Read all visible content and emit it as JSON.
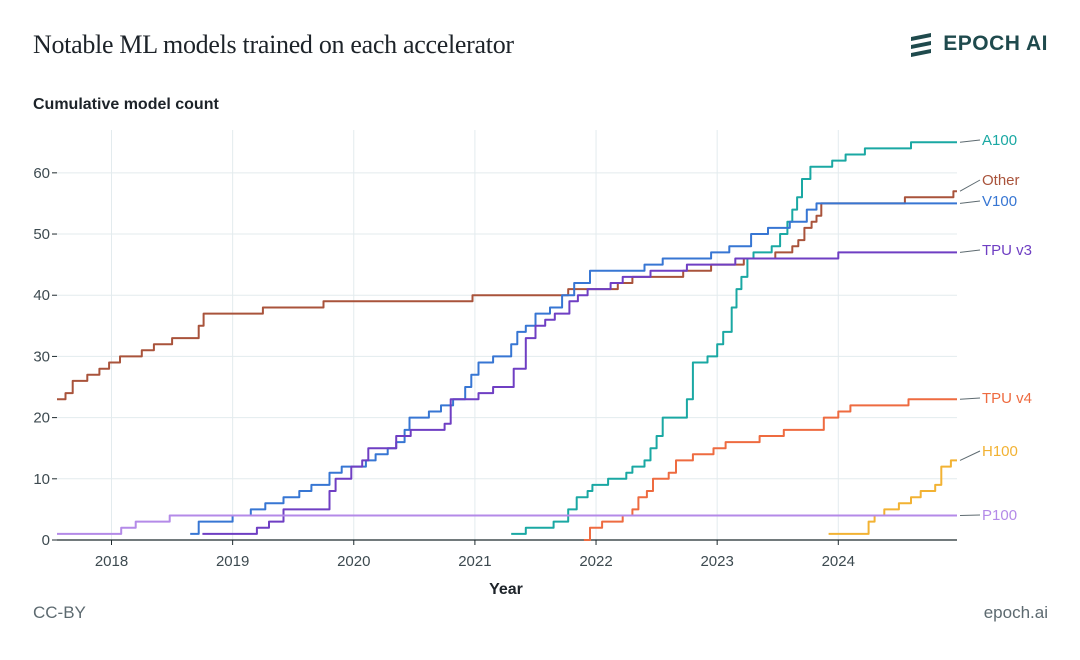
{
  "header": {
    "title": "Notable ML models trained on each accelerator",
    "brand": "EPOCH AI",
    "brand_icon": "epoch-logo-icon"
  },
  "footer": {
    "license": "CC-BY",
    "site": "epoch.ai"
  },
  "colors": {
    "grid": "#e3ebee",
    "axis": "#1e2a2e",
    "A100": "#1aa8a3",
    "Other": "#a9533b",
    "V100": "#3776d3",
    "TPU v3": "#6f3fc3",
    "TPU v4": "#ee6b40",
    "H100": "#f2b233",
    "P100": "#b48ae8"
  },
  "chart_data": {
    "type": "line",
    "step": true,
    "ylabel": "Cumulative model count",
    "xlabel": "Year",
    "xlim": [
      2017.55,
      2024.98
    ],
    "ylim": [
      0,
      67
    ],
    "xticks": [
      2018,
      2019,
      2020,
      2021,
      2022,
      2023,
      2024
    ],
    "xtick_labels": [
      "2018",
      "2019",
      "2020",
      "2021",
      "2022",
      "2023",
      "2024"
    ],
    "yticks": [
      0,
      10,
      20,
      30,
      40,
      50,
      60
    ],
    "ytick_labels": [
      "0",
      "10",
      "20",
      "30",
      "40",
      "50",
      "60"
    ],
    "grid": true,
    "legend": "direct-labels-right",
    "series": [
      {
        "name": "A100",
        "end_label": 65,
        "points": [
          [
            2021.3,
            1
          ],
          [
            2021.42,
            2
          ],
          [
            2021.65,
            3
          ],
          [
            2021.77,
            5
          ],
          [
            2021.84,
            7
          ],
          [
            2021.93,
            8
          ],
          [
            2021.97,
            9
          ],
          [
            2022.1,
            10
          ],
          [
            2022.25,
            11
          ],
          [
            2022.3,
            12
          ],
          [
            2022.4,
            13
          ],
          [
            2022.45,
            15
          ],
          [
            2022.5,
            17
          ],
          [
            2022.55,
            20
          ],
          [
            2022.75,
            23
          ],
          [
            2022.8,
            29
          ],
          [
            2022.92,
            30
          ],
          [
            2023.0,
            32
          ],
          [
            2023.05,
            34
          ],
          [
            2023.12,
            38
          ],
          [
            2023.16,
            41
          ],
          [
            2023.2,
            43
          ],
          [
            2023.25,
            46
          ],
          [
            2023.3,
            47
          ],
          [
            2023.45,
            48
          ],
          [
            2023.52,
            50
          ],
          [
            2023.58,
            52
          ],
          [
            2023.62,
            54
          ],
          [
            2023.66,
            56
          ],
          [
            2023.7,
            59
          ],
          [
            2023.77,
            61
          ],
          [
            2023.95,
            62
          ],
          [
            2024.06,
            63
          ],
          [
            2024.22,
            64
          ],
          [
            2024.6,
            65
          ],
          [
            2024.98,
            65
          ]
        ]
      },
      {
        "name": "Other",
        "end_label": 57,
        "points": [
          [
            2017.55,
            23
          ],
          [
            2017.62,
            24
          ],
          [
            2017.68,
            26
          ],
          [
            2017.8,
            27
          ],
          [
            2017.9,
            28
          ],
          [
            2017.98,
            29
          ],
          [
            2018.07,
            30
          ],
          [
            2018.25,
            31
          ],
          [
            2018.35,
            32
          ],
          [
            2018.5,
            33
          ],
          [
            2018.72,
            35
          ],
          [
            2018.76,
            37
          ],
          [
            2019.0,
            37
          ],
          [
            2019.25,
            38
          ],
          [
            2019.75,
            39
          ],
          [
            2020.5,
            39
          ],
          [
            2020.98,
            40
          ],
          [
            2021.55,
            40
          ],
          [
            2021.77,
            41
          ],
          [
            2022.0,
            41
          ],
          [
            2022.18,
            42
          ],
          [
            2022.3,
            43
          ],
          [
            2022.72,
            44
          ],
          [
            2022.95,
            45
          ],
          [
            2023.08,
            45
          ],
          [
            2023.22,
            46
          ],
          [
            2023.38,
            46
          ],
          [
            2023.48,
            47
          ],
          [
            2023.55,
            47
          ],
          [
            2023.62,
            48
          ],
          [
            2023.67,
            49
          ],
          [
            2023.72,
            51
          ],
          [
            2023.78,
            52
          ],
          [
            2023.82,
            53
          ],
          [
            2023.86,
            55
          ],
          [
            2024.2,
            55
          ],
          [
            2024.55,
            56
          ],
          [
            2024.95,
            57
          ],
          [
            2024.98,
            57
          ]
        ]
      },
      {
        "name": "V100",
        "end_label": 55,
        "points": [
          [
            2018.65,
            1
          ],
          [
            2018.72,
            3
          ],
          [
            2018.85,
            3
          ],
          [
            2019.0,
            4
          ],
          [
            2019.15,
            5
          ],
          [
            2019.27,
            6
          ],
          [
            2019.42,
            7
          ],
          [
            2019.55,
            8
          ],
          [
            2019.65,
            9
          ],
          [
            2019.8,
            11
          ],
          [
            2019.9,
            12
          ],
          [
            2020.1,
            13
          ],
          [
            2020.18,
            14
          ],
          [
            2020.28,
            15
          ],
          [
            2020.35,
            16
          ],
          [
            2020.42,
            18
          ],
          [
            2020.46,
            20
          ],
          [
            2020.62,
            21
          ],
          [
            2020.72,
            22
          ],
          [
            2020.82,
            23
          ],
          [
            2020.92,
            25
          ],
          [
            2020.97,
            27
          ],
          [
            2021.03,
            29
          ],
          [
            2021.15,
            30
          ],
          [
            2021.3,
            32
          ],
          [
            2021.35,
            34
          ],
          [
            2021.42,
            35
          ],
          [
            2021.5,
            37
          ],
          [
            2021.62,
            38
          ],
          [
            2021.72,
            40
          ],
          [
            2021.82,
            42
          ],
          [
            2021.95,
            44
          ],
          [
            2022.4,
            45
          ],
          [
            2022.55,
            46
          ],
          [
            2022.95,
            47
          ],
          [
            2023.1,
            48
          ],
          [
            2023.28,
            50
          ],
          [
            2023.42,
            51
          ],
          [
            2023.6,
            52
          ],
          [
            2023.74,
            54
          ],
          [
            2023.82,
            55
          ],
          [
            2024.98,
            55
          ]
        ]
      },
      {
        "name": "TPU v3",
        "end_label": 47,
        "points": [
          [
            2018.75,
            1
          ],
          [
            2019.15,
            1
          ],
          [
            2019.2,
            2
          ],
          [
            2019.3,
            3
          ],
          [
            2019.42,
            5
          ],
          [
            2019.72,
            5
          ],
          [
            2019.8,
            8
          ],
          [
            2019.85,
            10
          ],
          [
            2019.98,
            12
          ],
          [
            2020.07,
            13
          ],
          [
            2020.12,
            15
          ],
          [
            2020.32,
            15
          ],
          [
            2020.35,
            17
          ],
          [
            2020.47,
            18
          ],
          [
            2020.75,
            19
          ],
          [
            2020.8,
            23
          ],
          [
            2020.95,
            23
          ],
          [
            2021.03,
            24
          ],
          [
            2021.15,
            25
          ],
          [
            2021.32,
            28
          ],
          [
            2021.42,
            33
          ],
          [
            2021.5,
            35
          ],
          [
            2021.58,
            36
          ],
          [
            2021.66,
            37
          ],
          [
            2021.78,
            39
          ],
          [
            2021.85,
            40
          ],
          [
            2021.93,
            41
          ],
          [
            2022.12,
            42
          ],
          [
            2022.22,
            43
          ],
          [
            2022.45,
            44
          ],
          [
            2022.75,
            45
          ],
          [
            2023.15,
            46
          ],
          [
            2024.0,
            47
          ],
          [
            2024.98,
            47
          ]
        ]
      },
      {
        "name": "TPU v4",
        "end_label": 23,
        "points": [
          [
            2021.9,
            0
          ],
          [
            2021.95,
            2
          ],
          [
            2022.05,
            3
          ],
          [
            2022.22,
            4
          ],
          [
            2022.3,
            5
          ],
          [
            2022.35,
            7
          ],
          [
            2022.42,
            8
          ],
          [
            2022.47,
            10
          ],
          [
            2022.6,
            11
          ],
          [
            2022.66,
            13
          ],
          [
            2022.8,
            14
          ],
          [
            2022.97,
            15
          ],
          [
            2023.07,
            16
          ],
          [
            2023.35,
            17
          ],
          [
            2023.55,
            18
          ],
          [
            2023.88,
            20
          ],
          [
            2024.0,
            21
          ],
          [
            2024.1,
            22
          ],
          [
            2024.58,
            23
          ],
          [
            2024.98,
            23
          ]
        ]
      },
      {
        "name": "H100",
        "end_label": 13,
        "points": [
          [
            2023.92,
            1
          ],
          [
            2024.18,
            1
          ],
          [
            2024.25,
            3
          ],
          [
            2024.3,
            4
          ],
          [
            2024.38,
            5
          ],
          [
            2024.5,
            6
          ],
          [
            2024.6,
            7
          ],
          [
            2024.68,
            8
          ],
          [
            2024.8,
            9
          ],
          [
            2024.85,
            12
          ],
          [
            2024.93,
            13
          ],
          [
            2024.98,
            13
          ]
        ]
      },
      {
        "name": "P100",
        "end_label": 4,
        "points": [
          [
            2017.55,
            1
          ],
          [
            2018.02,
            1
          ],
          [
            2018.08,
            2
          ],
          [
            2018.2,
            3
          ],
          [
            2018.4,
            3
          ],
          [
            2018.48,
            4
          ],
          [
            2024.98,
            4
          ]
        ]
      }
    ]
  }
}
